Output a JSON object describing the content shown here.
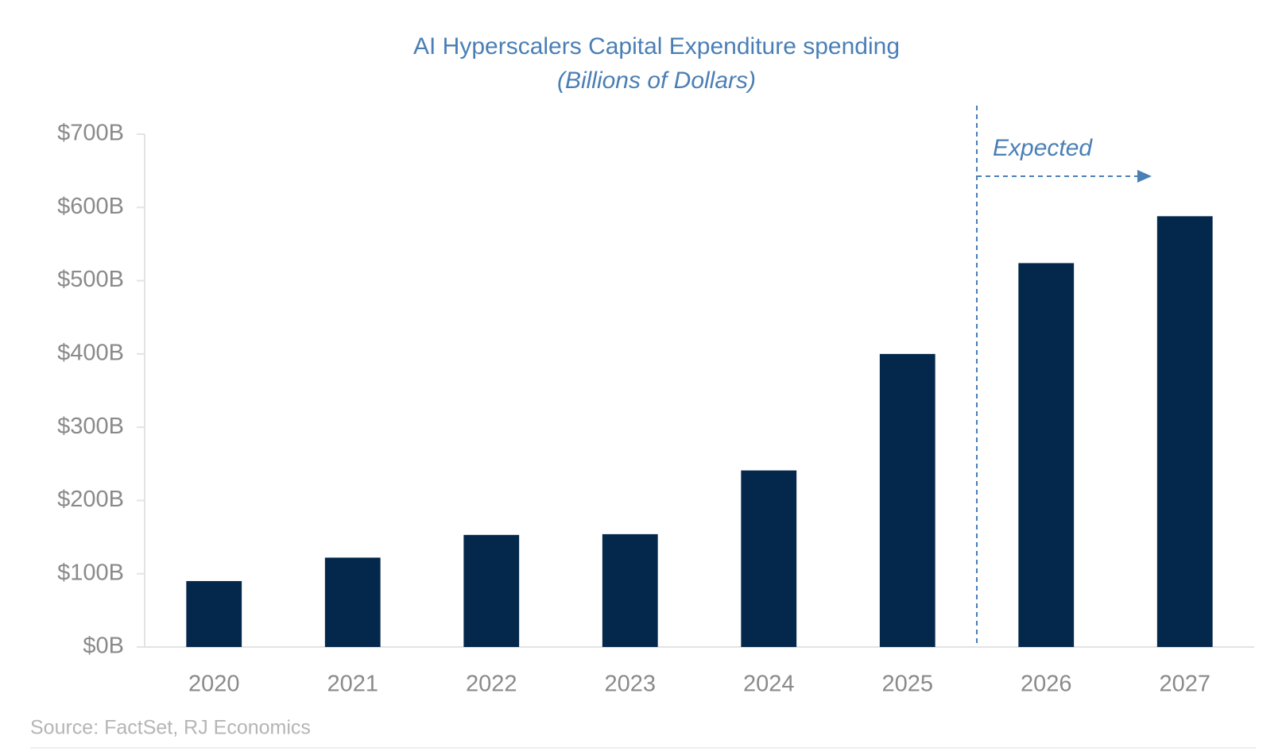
{
  "chart_data": {
    "type": "bar",
    "title": "AI Hyperscalers Capital Expenditure spending",
    "subtitle": "(Billions of Dollars)",
    "annotation": "Expected",
    "source": "Source: FactSet, RJ Economics",
    "categories": [
      "2020",
      "2021",
      "2022",
      "2023",
      "2024",
      "2025",
      "2026",
      "2027"
    ],
    "values": [
      90,
      122,
      153,
      154,
      241,
      400,
      524,
      588
    ],
    "color": "#04284b",
    "ylim": [
      0,
      700
    ],
    "yticks": [
      {
        "value": 0,
        "label": "$0B"
      },
      {
        "value": 100,
        "label": "$100B"
      },
      {
        "value": 200,
        "label": "$200B"
      },
      {
        "value": 300,
        "label": "$300B"
      },
      {
        "value": 400,
        "label": "$400B"
      },
      {
        "value": 500,
        "label": "$500B"
      },
      {
        "value": 600,
        "label": "$600B"
      },
      {
        "value": 700,
        "label": "$700B"
      }
    ],
    "grid": false
  }
}
